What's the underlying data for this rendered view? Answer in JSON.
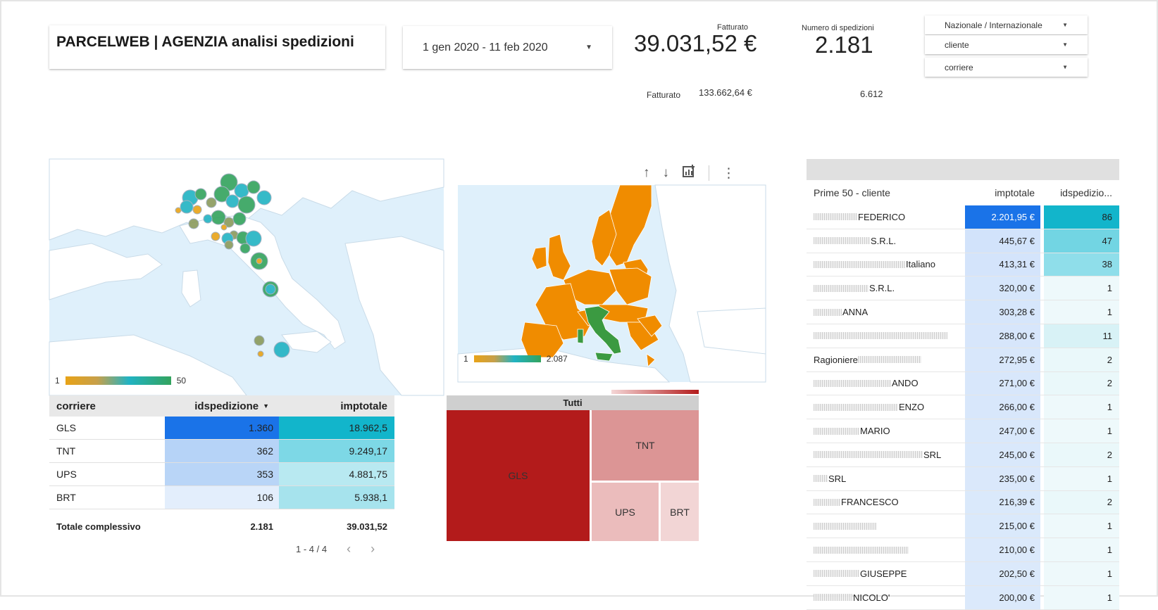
{
  "header": {
    "title": "PARCELWEB | AGENZIA analisi spedizioni",
    "date_range": "1 gen 2020 - 11 feb 2020",
    "kpi_revenue_label": "Fatturato",
    "kpi_revenue_value": "39.031,52 €",
    "kpi_shipments_label": "Numero di spedizioni",
    "kpi_shipments_value": "2.181",
    "prev_revenue_label": "Fatturato",
    "prev_revenue_value": "133.662,64 €",
    "prev_shipments_value": "6.612"
  },
  "filters": [
    {
      "label": "Nazionale / Internazionale"
    },
    {
      "label": "cliente"
    },
    {
      "label": "corriere"
    }
  ],
  "map_italy": {
    "legend_min": "1",
    "legend_max": "50"
  },
  "map_europe": {
    "legend_min": "1",
    "legend_max": "2.087"
  },
  "colors": {
    "orange": "#f08c00",
    "green": "#3b9a41",
    "blue_strong": "#1a73e8",
    "teal_strong": "#12b5cb",
    "treemap_dark": "#b31b1b"
  },
  "carrier_table": {
    "headers": {
      "corriere": "corriere",
      "idspedizione": "idspedizione",
      "imptotale": "imptotale"
    },
    "sort_indicator": "▼",
    "rows": [
      {
        "name": "GLS",
        "ids": "1.360",
        "imp": "18.962,5",
        "ids_bg": "#1a73e8",
        "imp_bg": "#12b5cb"
      },
      {
        "name": "TNT",
        "ids": "362",
        "imp": "9.249,17",
        "ids_bg": "#b6d3f7",
        "imp_bg": "#7dd8e6"
      },
      {
        "name": "UPS",
        "ids": "353",
        "imp": "4.881,75",
        "ids_bg": "#b9d5f7",
        "imp_bg": "#b8e9f1"
      },
      {
        "name": "BRT",
        "ids": "106",
        "imp": "5.938,1",
        "ids_bg": "#e3eefc",
        "imp_bg": "#a6e3ed"
      }
    ],
    "total_label": "Totale complessivo",
    "total_ids": "2.181",
    "total_imp": "39.031,52",
    "pager": "1 - 4 / 4"
  },
  "treemap": {
    "root": "Tutti",
    "cells": [
      {
        "label": "GLS",
        "color": "#b31b1b"
      },
      {
        "label": "TNT",
        "color": "#dc9595"
      },
      {
        "label": "UPS",
        "color": "#ebbcbc"
      },
      {
        "label": "BRT",
        "color": "#f2d5d5"
      }
    ]
  },
  "client_table": {
    "headers": {
      "name": "Prime 50 - cliente",
      "imp": "imptotale",
      "ids": "idspedizio..."
    },
    "rows": [
      {
        "prefix": "",
        "blur": 62,
        "suffix": "FEDERICO",
        "imp": "2.201,95 €",
        "ids": "86",
        "imp_bg": "#1a73e8",
        "ids_bg": "#12b5cb",
        "imp_color": "#fff"
      },
      {
        "prefix": "",
        "blur": 80,
        "suffix": "S.R.L.",
        "imp": "445,67 €",
        "ids": "47",
        "imp_bg": "#d2e3fb",
        "ids_bg": "#72d5e3",
        "imp_color": "#222"
      },
      {
        "prefix": "",
        "blur": 130,
        "suffix": "Italiano",
        "imp": "413,31 €",
        "ids": "38",
        "imp_bg": "#d4e4fb",
        "ids_bg": "#8fdeea",
        "imp_color": "#222"
      },
      {
        "prefix": "",
        "blur": 78,
        "suffix": "S.R.L.",
        "imp": "320,00 €",
        "ids": "1",
        "imp_bg": "#d6e6fb",
        "ids_bg": "#eef9fb",
        "imp_color": "#222"
      },
      {
        "prefix": "",
        "blur": 40,
        "suffix": "ANNA",
        "imp": "303,28 €",
        "ids": "1",
        "imp_bg": "#d6e6fb",
        "ids_bg": "#eef9fb",
        "imp_color": "#222"
      },
      {
        "prefix": "",
        "blur": 190,
        "suffix": "",
        "imp": "288,00 €",
        "ids": "11",
        "imp_bg": "#d7e6fb",
        "ids_bg": "#d8f2f6",
        "imp_color": "#222"
      },
      {
        "prefix": "Ragioniere",
        "blur": 90,
        "suffix": "",
        "imp": "272,95 €",
        "ids": "2",
        "imp_bg": "#d8e7fb",
        "ids_bg": "#eaf8fa",
        "imp_color": "#222"
      },
      {
        "prefix": "",
        "blur": 110,
        "suffix": "ANDO",
        "imp": "271,00 €",
        "ids": "2",
        "imp_bg": "#d8e7fb",
        "ids_bg": "#eaf8fa",
        "imp_color": "#222"
      },
      {
        "prefix": "",
        "blur": 120,
        "suffix": "ENZO",
        "imp": "266,00 €",
        "ids": "1",
        "imp_bg": "#d8e7fb",
        "ids_bg": "#eef9fb",
        "imp_color": "#222"
      },
      {
        "prefix": "",
        "blur": 65,
        "suffix": "MARIO",
        "imp": "247,00 €",
        "ids": "1",
        "imp_bg": "#d9e8fb",
        "ids_bg": "#eef9fb",
        "imp_color": "#222"
      },
      {
        "prefix": "",
        "blur": 155,
        "suffix": "SRL",
        "imp": "245,00 €",
        "ids": "2",
        "imp_bg": "#d9e8fb",
        "ids_bg": "#eaf8fa",
        "imp_color": "#222"
      },
      {
        "prefix": "",
        "blur": 20,
        "suffix": "SRL",
        "imp": "235,00 €",
        "ids": "1",
        "imp_bg": "#dae8fb",
        "ids_bg": "#eef9fb",
        "imp_color": "#222"
      },
      {
        "prefix": "",
        "blur": 38,
        "suffix": "FRANCESCO",
        "imp": "216,39 €",
        "ids": "2",
        "imp_bg": "#dae9fb",
        "ids_bg": "#eaf8fa",
        "imp_color": "#222"
      },
      {
        "prefix": "",
        "blur": 90,
        "suffix": "",
        "imp": "215,00 €",
        "ids": "1",
        "imp_bg": "#dae9fb",
        "ids_bg": "#eef9fb",
        "imp_color": "#222"
      },
      {
        "prefix": "",
        "blur": 135,
        "suffix": "",
        "imp": "210,00 €",
        "ids": "1",
        "imp_bg": "#dbe9fb",
        "ids_bg": "#eef9fb",
        "imp_color": "#222"
      },
      {
        "prefix": "",
        "blur": 65,
        "suffix": "GIUSEPPE",
        "imp": "202,50 €",
        "ids": "1",
        "imp_bg": "#dbe9fb",
        "ids_bg": "#eef9fb",
        "imp_color": "#222"
      },
      {
        "prefix": "",
        "blur": 55,
        "suffix": "NICOLO'",
        "imp": "200,00 €",
        "ids": "1",
        "imp_bg": "#dbe9fb",
        "ids_bg": "#eef9fb",
        "imp_color": "#222"
      }
    ]
  }
}
